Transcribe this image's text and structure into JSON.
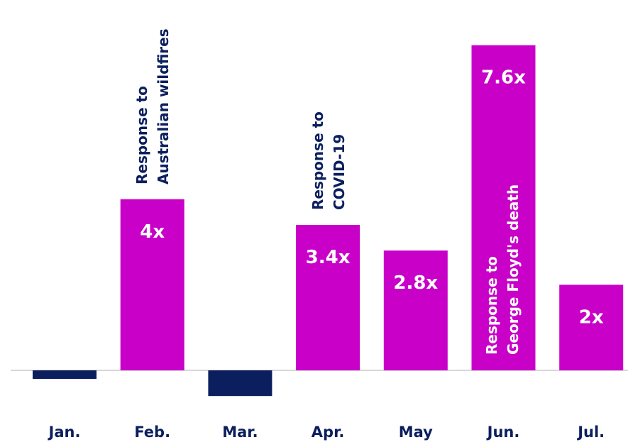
{
  "chart_data": {
    "type": "bar",
    "categories": [
      "Jan.",
      "Feb.",
      "Mar.",
      "Apr.",
      "May",
      "Jun.",
      "Jul."
    ],
    "values": [
      -0.2,
      4,
      -0.6,
      3.4,
      2.8,
      7.6,
      2
    ],
    "value_labels": [
      null,
      "4x",
      null,
      "3.4x",
      "2.8x",
      "7.6x",
      "2x"
    ],
    "colors": [
      "#0b1f5e",
      "#c800c8",
      "#0b1f5e",
      "#c800c8",
      "#c800c8",
      "#c800c8",
      "#c800c8"
    ],
    "annotations": [
      [
        "Response to",
        "Australian wildfires"
      ],
      [
        "Response to",
        "COVID-19"
      ],
      [
        "Response to",
        "George Floyd's death"
      ]
    ]
  }
}
